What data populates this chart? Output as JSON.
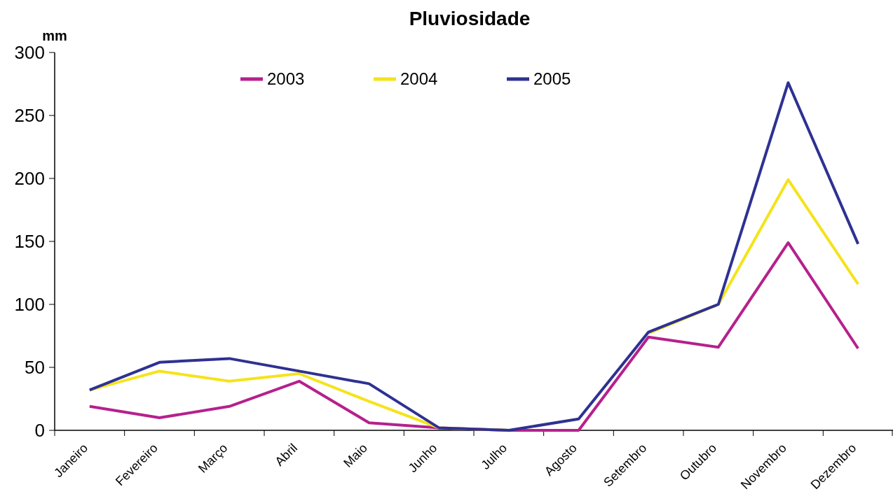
{
  "chart_data": {
    "type": "line",
    "title": "Pluviosidade",
    "ylabel": "mm",
    "categories": [
      "Janeiro",
      "Fevereiro",
      "Março",
      "Abril",
      "Maio",
      "Junho",
      "Julho",
      "Agosto",
      "Setembro",
      "Outubro",
      "Novembro",
      "Dezembro"
    ],
    "series": [
      {
        "name": "2003",
        "color": "#b5218c",
        "values": [
          19,
          10,
          19,
          39,
          6,
          2,
          0,
          0,
          74,
          66,
          149,
          65
        ]
      },
      {
        "name": "2004",
        "color": "#f5e31b",
        "values": [
          32,
          47,
          39,
          45,
          23,
          2,
          0,
          null,
          77,
          100,
          199,
          116
        ]
      },
      {
        "name": "2005",
        "color": "#2e3192",
        "values": [
          32,
          54,
          57,
          47,
          37,
          2,
          0,
          9,
          78,
          100,
          276,
          148
        ]
      }
    ],
    "ylim": [
      0,
      300
    ],
    "yticks": [
      0,
      50,
      100,
      150,
      200,
      250,
      300
    ],
    "grid": false,
    "legend": "top",
    "marker": "none",
    "line_style": "solid"
  }
}
